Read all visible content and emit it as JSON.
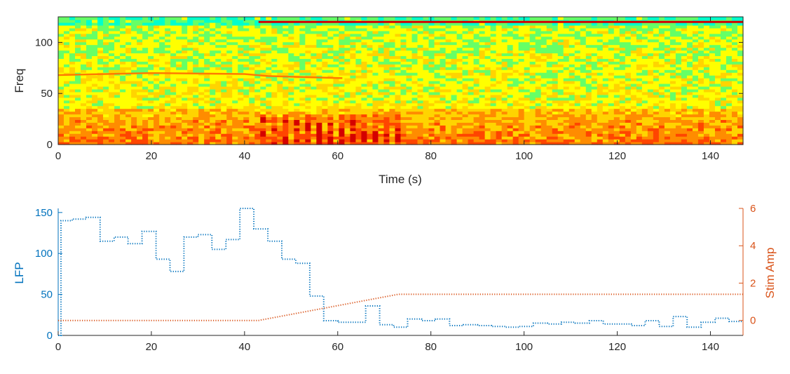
{
  "chart_data": [
    {
      "type": "heatmap",
      "title": "",
      "xlabel": "Time (s)",
      "ylabel": "Freq",
      "xlim": [
        0,
        147
      ],
      "ylim": [
        0,
        125
      ],
      "xticks": [
        0,
        20,
        40,
        60,
        80,
        100,
        120,
        140
      ],
      "yticks": [
        0,
        50,
        100
      ],
      "colormap": [
        "#00b4ff",
        "#00ffcc",
        "#66ff66",
        "#ffff00",
        "#ffd400",
        "#ff8c00",
        "#ff4500",
        "#d40000"
      ],
      "features": {
        "low_band_hz": [
          0,
          35
        ],
        "line_120hz_start_s": 43,
        "line_68hz_end_s": 61,
        "stim_artifact_window_s": [
          43,
          73
        ]
      }
    },
    {
      "type": "line",
      "title": "",
      "xlabel": "",
      "xlim": [
        0,
        147
      ],
      "xticks": [
        0,
        20,
        40,
        60,
        80,
        100,
        120,
        140
      ],
      "left_axis": {
        "label": "LFP",
        "ylim": [
          0,
          155
        ],
        "yticks": [
          0,
          50,
          100,
          150
        ],
        "color": "#0072bd"
      },
      "right_axis": {
        "label": "Stim Amp",
        "ylim": [
          -0.8,
          6
        ],
        "yticks": [
          0,
          2,
          4,
          6
        ],
        "color": "#d95319"
      },
      "series": [
        {
          "axis": "left",
          "style": "dotted-step",
          "color": "#0072bd",
          "x": [
            0,
            0.6,
            3,
            6,
            9,
            12,
            15,
            18,
            21,
            24,
            27,
            30,
            33,
            36,
            39,
            42,
            45,
            48,
            51,
            54,
            57,
            60,
            63,
            66,
            69,
            72,
            75,
            78,
            81,
            84,
            87,
            90,
            93,
            96,
            99,
            102,
            105,
            108,
            111,
            114,
            117,
            120,
            123,
            126,
            129,
            132,
            135,
            138,
            141,
            144
          ],
          "values": [
            0,
            140,
            142,
            144,
            115,
            120,
            112,
            127,
            93,
            78,
            120,
            123,
            105,
            117,
            155,
            130,
            115,
            93,
            88,
            48,
            18,
            16,
            16,
            36,
            13,
            10,
            20,
            18,
            20,
            12,
            13,
            12,
            11,
            10,
            11,
            15,
            14,
            16,
            15,
            18,
            14,
            14,
            12,
            18,
            11,
            23,
            10,
            16,
            21,
            17
          ]
        },
        {
          "axis": "right",
          "style": "dotted",
          "color": "#d95319",
          "x": [
            0,
            43,
            73,
            147
          ],
          "values": [
            0,
            0,
            1.4,
            1.4
          ]
        }
      ]
    }
  ]
}
